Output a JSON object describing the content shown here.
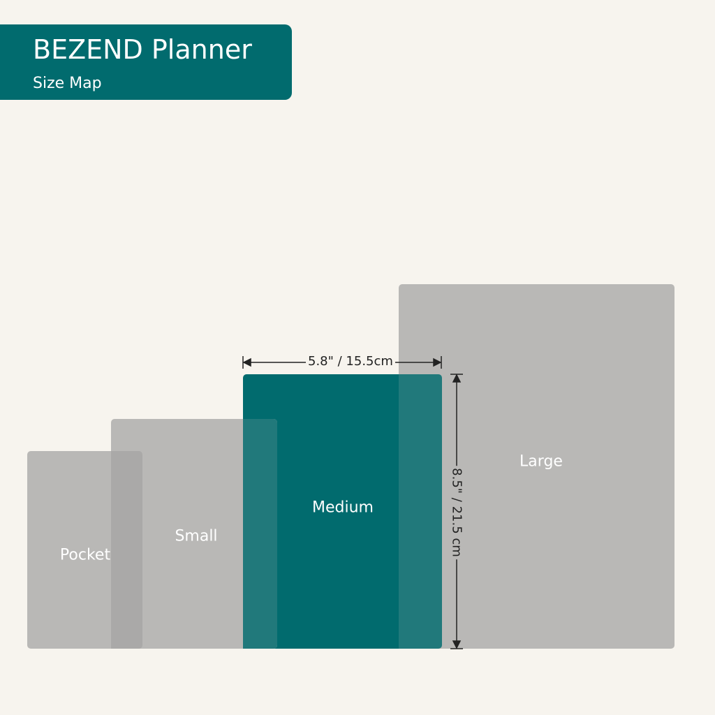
{
  "header": {
    "title": "BEZEND Planner",
    "subtitle": "Size Map"
  },
  "colors": {
    "background": "#f7f4ee",
    "accent": "#016b6e",
    "size_box": "#b9b8b6"
  },
  "sizes": [
    {
      "label": "Pocket"
    },
    {
      "label": "Small"
    },
    {
      "label": "Medium",
      "highlighted": true
    },
    {
      "label": "Large"
    }
  ],
  "dimensions": {
    "width": "5.8\" / 15.5cm",
    "height": "8.5\" / 21.5 cm"
  }
}
